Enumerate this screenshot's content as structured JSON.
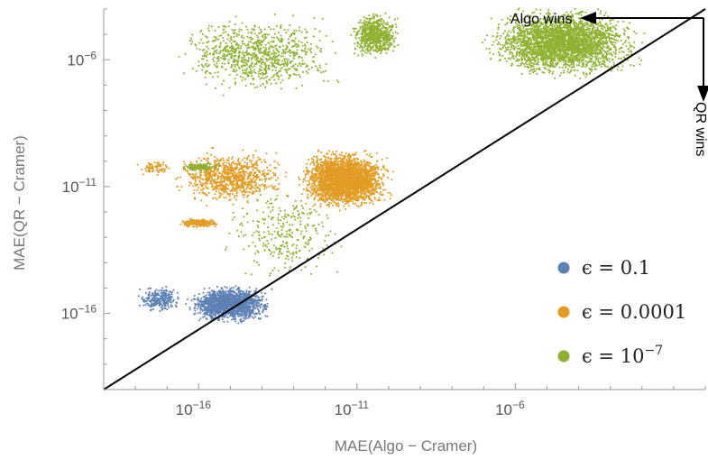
{
  "chart_data": {
    "type": "scatter",
    "title": "",
    "xlabel": "MAE(Algo − Cramer)",
    "ylabel": "MAE(QR − Cramer)",
    "x_scale": "log",
    "y_scale": "log",
    "xlim": [
      1e-19,
      1.0
    ],
    "ylim": [
      1e-19,
      0.0001
    ],
    "x_tick_labels": [
      {
        "exp": -16,
        "base": "10",
        "sup": "−16"
      },
      {
        "exp": -11,
        "base": "10",
        "sup": "−11"
      },
      {
        "exp": -6,
        "base": "10",
        "sup": "−6"
      }
    ],
    "y_tick_labels": [
      {
        "exp": -16,
        "base": "10",
        "sup": "−16"
      },
      {
        "exp": -11,
        "base": "10",
        "sup": "−11"
      },
      {
        "exp": -6,
        "base": "10",
        "sup": "−6"
      }
    ],
    "grid": false,
    "legend_position": "bottom-right",
    "series": [
      {
        "name": "ϵ = 0.1",
        "color": "#5e81b5",
        "clusters": [
          {
            "x_range": [
              -16.5,
              -13.6
            ],
            "y_range": [
              -16.4,
              -14.8
            ],
            "count": 1600
          },
          {
            "x_range": [
              -18.0,
              -16.5
            ],
            "y_range": [
              -16.0,
              -14.8
            ],
            "count": 260
          }
        ]
      },
      {
        "name": "ϵ = 0.0001",
        "color": "#e19c24",
        "clusters": [
          {
            "x_range": [
              -13.0,
              -9.8
            ],
            "y_range": [
              -12.0,
              -9.4
            ],
            "count": 2800
          },
          {
            "x_range": [
              -17.0,
              -13.0
            ],
            "y_range": [
              -11.8,
              -9.4
            ],
            "count": 900
          },
          {
            "x_range": [
              -16.7,
              -15.3
            ],
            "y_range": [
              -12.6,
              -12.2
            ],
            "count": 220
          },
          {
            "x_range": [
              -18.0,
              -16.8
            ],
            "y_range": [
              -10.6,
              -9.8
            ],
            "count": 70
          }
        ]
      },
      {
        "name": "ϵ = 10",
        "name_sup": "−7",
        "color": "#8fb131",
        "clusters": [
          {
            "x_range": [
              -7.2,
              -1.8
            ],
            "y_range": [
              -6.8,
              -3.8
            ],
            "count": 3000
          },
          {
            "x_range": [
              -11.3,
              -9.6
            ],
            "y_range": [
              -6.0,
              -4.0
            ],
            "count": 700
          },
          {
            "x_range": [
              -17.0,
              -11.3
            ],
            "y_range": [
              -7.5,
              -4.0
            ],
            "count": 900
          },
          {
            "x_range": [
              -16.6,
              -15.3
            ],
            "y_range": [
              -10.4,
              -10.0
            ],
            "count": 160
          },
          {
            "x_range": [
              -15.5,
              -11.0
            ],
            "y_range": [
              -15.0,
              -10.6
            ],
            "count": 300
          }
        ]
      }
    ],
    "reference_line": {
      "from": [
        -19,
        -19
      ],
      "to": [
        0,
        -4
      ],
      "color": "#000000"
    },
    "annotations": {
      "algo_wins": "Algo wins",
      "qr_wins": "QR wins"
    }
  }
}
